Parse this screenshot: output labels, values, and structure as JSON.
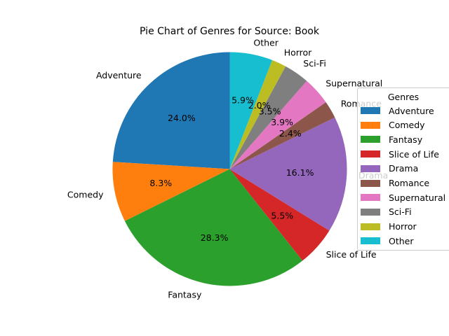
{
  "chart_data": {
    "type": "pie",
    "title": "Pie Chart of Genres for Source: Book",
    "legend_title": "Genres",
    "legend_position": "right",
    "start_angle_deg": 90,
    "direction": "counterclockwise",
    "slices": [
      {
        "label": "Adventure",
        "value": 24.0,
        "pct_label": "24.0%",
        "color": "#1f77b4"
      },
      {
        "label": "Comedy",
        "value": 8.3,
        "pct_label": "8.3%",
        "color": "#ff7f0e"
      },
      {
        "label": "Fantasy",
        "value": 28.3,
        "pct_label": "28.3%",
        "color": "#2ca02c"
      },
      {
        "label": "Slice of Life",
        "value": 5.5,
        "pct_label": "5.5%",
        "color": "#d62728"
      },
      {
        "label": "Drama",
        "value": 16.1,
        "pct_label": "16.1%",
        "color": "#9467bd"
      },
      {
        "label": "Romance",
        "value": 2.4,
        "pct_label": "2.4%",
        "color": "#8c564b"
      },
      {
        "label": "Supernatural",
        "value": 3.9,
        "pct_label": "3.9%",
        "color": "#e377c2"
      },
      {
        "label": "Sci-Fi",
        "value": 3.5,
        "pct_label": "3.5%",
        "color": "#7f7f7f"
      },
      {
        "label": "Horror",
        "value": 2.0,
        "pct_label": "2.0%",
        "color": "#bcbd22"
      },
      {
        "label": "Other",
        "value": 5.9,
        "pct_label": "5.9%",
        "color": "#17becf"
      }
    ]
  }
}
